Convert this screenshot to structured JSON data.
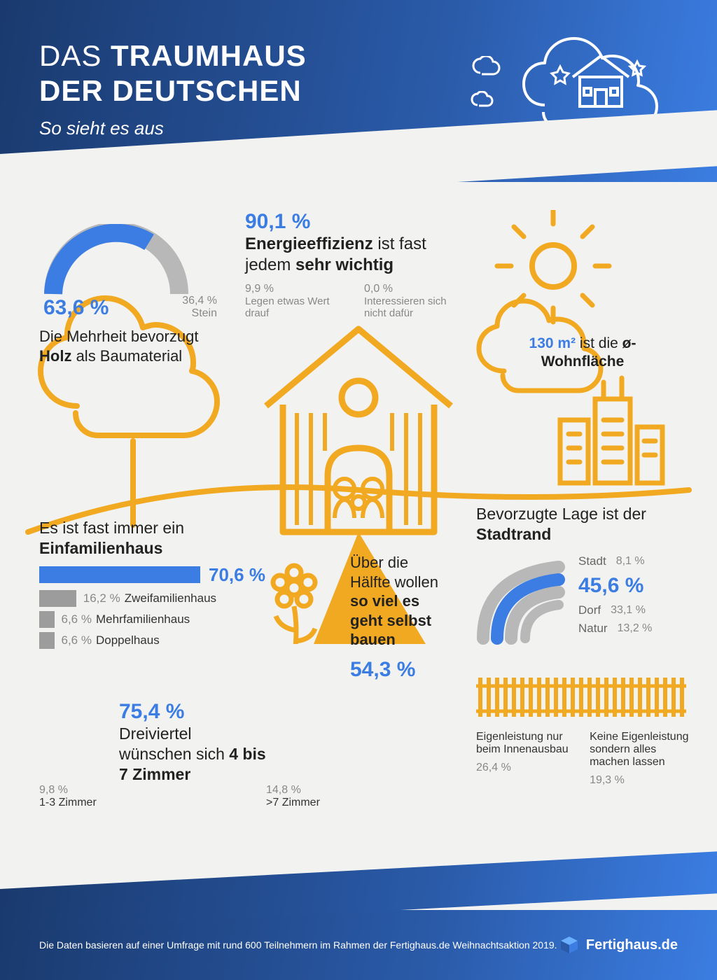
{
  "colors": {
    "blue": "#3b7de2",
    "blue_dark": "#1a3a6e",
    "orange": "#f2a922",
    "gray": "#9c9c9c",
    "gray_light": "#b8b8b8",
    "text": "#222222",
    "muted": "#888888",
    "bg": "#f2f2f0"
  },
  "header": {
    "title_part1": "DAS ",
    "title_part1_bold": "TRAUMHAUS",
    "title_line2": "DER DEUTSCHEN",
    "subtitle": "So sieht es aus"
  },
  "material": {
    "gauge_pct": 63.6,
    "pct_label": "63,6 %",
    "alt_pct": "36,4 %",
    "alt_label": "Stein",
    "text_pre": "Die Mehrheit bevorzugt ",
    "text_bold": "Holz",
    "text_post": " als Baumaterial"
  },
  "energy": {
    "pct": "90,1 %",
    "headline_pre": "Energieeffizienz",
    "headline_mid": " ist fast jedem ",
    "headline_bold": "sehr wichtig",
    "sub1_pct": "9,9 %",
    "sub1_txt": "Legen etwas Wert drauf",
    "sub2_pct": "0,0 %",
    "sub2_txt": "Interessieren sich nicht dafür"
  },
  "area": {
    "value": "130 m²",
    "text_mid": " ist die ",
    "text_bold": "ø-Wohnfläche"
  },
  "housetype": {
    "headline_pre": "Es ist fast immer ein ",
    "headline_bold": "Einfamilienhaus",
    "main_pct": "70,6 %",
    "bars": [
      {
        "pct": 70.6,
        "pct_label": "70,6 %",
        "label": "",
        "color": "#3b7de2",
        "highlight": true
      },
      {
        "pct": 16.2,
        "pct_label": "16,2 %",
        "label": "Zweifamilienhaus",
        "color": "#9c9c9c"
      },
      {
        "pct": 6.6,
        "pct_label": "6,6 %",
        "label": "Mehrfamilienhaus",
        "color": "#9c9c9c"
      },
      {
        "pct": 6.6,
        "pct_label": "6,6 %",
        "label": "Doppelhaus",
        "color": "#9c9c9c"
      }
    ]
  },
  "location": {
    "headline_pre": "Bevorzugte Lage ist der ",
    "headline_bold": "Stadtrand",
    "main_pct": "45,6 %",
    "items": [
      {
        "label": "Stadt",
        "pct": "8,1 %"
      },
      {
        "label": "Dorf",
        "pct": "33,1 %"
      },
      {
        "label": "Natur",
        "pct": "13,2 %"
      }
    ]
  },
  "diy": {
    "text_line1": "Über die Hälfte wollen ",
    "text_bold": "so viel es geht selbst bauen",
    "pct": "54,3 %",
    "sub1_txt": "Eigenleistung nur beim Innenausbau",
    "sub1_pct": "26,4 %",
    "sub2_txt": "Keine Eigenleistung sondern alles machen lassen",
    "sub2_pct": "19,3 %"
  },
  "rooms": {
    "pct": "75,4 %",
    "text_pre": "Dreiviertel wünschen sich ",
    "text_bold": "4 bis 7 Zimmer",
    "left_pct": "9,8 %",
    "left_lbl": "1-3 Zimmer",
    "right_pct": "14,8 %",
    "right_lbl": ">7 Zimmer"
  },
  "footer": {
    "note": "Die Daten basieren auf einer Umfrage mit rund 600 Teilnehmern im Rahmen der Fertighaus.de Weihnachtsaktion 2019.",
    "brand": "Fertighaus.de"
  }
}
